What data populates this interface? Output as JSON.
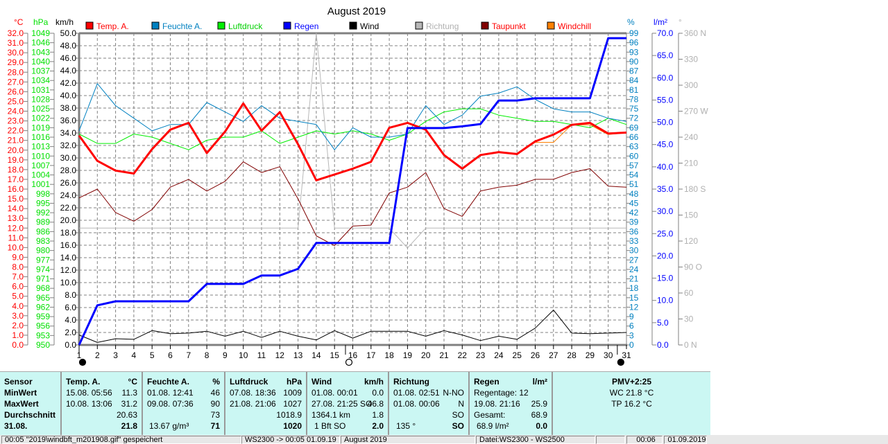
{
  "chart_data": {
    "type": "line",
    "title": "August 2019",
    "x": [
      1,
      2,
      3,
      4,
      5,
      6,
      7,
      8,
      9,
      10,
      11,
      12,
      13,
      14,
      15,
      16,
      17,
      18,
      19,
      20,
      21,
      22,
      23,
      24,
      25,
      26,
      27,
      28,
      29,
      30,
      31
    ],
    "x_tick_labels": [
      "1",
      "2",
      "3",
      "4",
      "5",
      "6",
      "7",
      "8",
      "9",
      "10",
      "11",
      "12",
      "13",
      "14",
      "15",
      "16",
      "17",
      "18",
      "19",
      "20",
      "21",
      "22",
      "23",
      "24",
      "25",
      "26",
      "27",
      "28",
      "29",
      "30",
      "31"
    ],
    "axes": {
      "temp": {
        "unit": "°C",
        "range": [
          0,
          32
        ],
        "step": 1,
        "color": "#ff0000"
      },
      "pressure": {
        "unit": "hPa",
        "range": [
          950,
          1049
        ],
        "step": 3,
        "color": "#00e000"
      },
      "wind": {
        "unit": "km/h",
        "range": [
          0,
          50
        ],
        "step": 2,
        "color": "#000000"
      },
      "humidity": {
        "unit": "%",
        "range": [
          0,
          99
        ],
        "step": 3,
        "color": "#0080c0"
      },
      "rain": {
        "unit": "l/m²",
        "range": [
          0,
          70
        ],
        "step": 5,
        "color": "#0000ff"
      },
      "direction": {
        "unit": "°",
        "range": [
          0,
          360
        ],
        "step": 30,
        "color": "#b0b0b0",
        "labels": [
          "0   N",
          "30",
          "60",
          "90   O",
          "120",
          "150",
          "180 S",
          "210",
          "240",
          "270 W",
          "300",
          "330",
          "360 N"
        ]
      }
    },
    "series": [
      {
        "name": "Temp. A.",
        "axis": "temp",
        "color": "#ff0000",
        "width": 3,
        "values": [
          21.5,
          18.9,
          17.9,
          17.6,
          20.1,
          22.1,
          22.8,
          19.7,
          21.9,
          24.8,
          22.0,
          23.9,
          20.6,
          16.9,
          17.5,
          18.1,
          18.8,
          22.3,
          22.8,
          22.1,
          19.5,
          18.1,
          19.5,
          19.8,
          19.6,
          20.9,
          21.6,
          22.6,
          22.8,
          21.7,
          21.8
        ]
      },
      {
        "name": "Feuchte A.",
        "axis": "humidity",
        "color": "#0080c0",
        "width": 1,
        "values": [
          68,
          83,
          76,
          72,
          68,
          70,
          70,
          77,
          74,
          71,
          76,
          72,
          71,
          70,
          62,
          69,
          66,
          66,
          67,
          76,
          70,
          73,
          79,
          80,
          82,
          78,
          75,
          74,
          74,
          72,
          71
        ]
      },
      {
        "name": "Luftdruck",
        "axis": "pressure",
        "color": "#00ee00",
        "width": 1,
        "values": [
          1017,
          1014,
          1014,
          1017,
          1016,
          1014,
          1012,
          1015,
          1016,
          1016,
          1018,
          1014,
          1016,
          1018,
          1017,
          1018,
          1017,
          1015,
          1017,
          1021,
          1024,
          1025,
          1025,
          1023,
          1022,
          1021,
          1021,
          1020,
          1019,
          1022,
          1020
        ]
      },
      {
        "name": "Regen",
        "axis": "rain",
        "color": "#0000ff",
        "width": 3,
        "values": [
          0,
          8.9,
          9.8,
          9.8,
          9.8,
          9.8,
          9.8,
          13.7,
          13.7,
          13.7,
          15.6,
          15.6,
          17.1,
          22.9,
          22.9,
          22.9,
          22.9,
          22.9,
          48.7,
          48.7,
          48.7,
          49.1,
          49.6,
          54.9,
          54.9,
          55.4,
          55.4,
          55.4,
          55.4,
          68.9,
          68.9
        ]
      },
      {
        "name": "Wind",
        "axis": "wind",
        "color": "#000000",
        "width": 1,
        "values": [
          1.6,
          0.4,
          1.0,
          0.9,
          2.3,
          1.8,
          1.9,
          2.2,
          1.4,
          2.2,
          1.2,
          2.2,
          1.4,
          0.8,
          2.3,
          1.1,
          2.2,
          2.2,
          2.2,
          1.4,
          2.3,
          1.6,
          0.7,
          1.4,
          0.9,
          2.7,
          5.6,
          1.9,
          1.8,
          1.9,
          2.0
        ]
      },
      {
        "name": "Richtung",
        "axis": "direction",
        "color": "#b8b8b8",
        "width": 1,
        "values": [
          135,
          135,
          135,
          135,
          135,
          135,
          135,
          135,
          135,
          135,
          135,
          135,
          135,
          360,
          135,
          135,
          135,
          135,
          112,
          135,
          135,
          135,
          135,
          135,
          135,
          135,
          135,
          135,
          135,
          135,
          135
        ]
      },
      {
        "name": "Taupunkt",
        "axis": "temp",
        "color": "#800000",
        "width": 1,
        "values": [
          15.1,
          16.0,
          13.6,
          12.7,
          13.9,
          16.2,
          17.0,
          15.8,
          16.8,
          18.8,
          17.7,
          18.3,
          15.0,
          11.2,
          10.2,
          12.2,
          12.3,
          15.6,
          16.2,
          17.7,
          14.0,
          13.2,
          15.8,
          16.2,
          16.4,
          17.0,
          17.0,
          17.7,
          18.1,
          16.3,
          16.2
        ]
      },
      {
        "name": "Windchill",
        "axis": "temp",
        "color": "#ff8000",
        "width": 1,
        "values": [
          21.5,
          18.9,
          17.9,
          17.6,
          20.1,
          22.1,
          22.8,
          19.7,
          21.9,
          24.8,
          22.0,
          23.9,
          20.6,
          16.9,
          17.5,
          18.1,
          18.8,
          22.3,
          22.8,
          22.1,
          19.5,
          18.1,
          19.5,
          19.8,
          19.6,
          20.8,
          20.8,
          22.6,
          22.6,
          21.6,
          21.8
        ]
      }
    ],
    "legend_label_colors": [
      "#ff0000",
      "#0080c0",
      "#00d000",
      "#0000ff",
      "#000000",
      "#b0b0b0",
      "#ff0000",
      "#ff0000"
    ],
    "moon_phases": [
      {
        "day": 1,
        "phase": "new"
      },
      {
        "day": 15.6,
        "phase": "full"
      },
      {
        "day": 30.5,
        "phase": "new"
      }
    ],
    "grid": true,
    "legend_placement": "top"
  },
  "stats": {
    "row_labels": [
      "Sensor",
      "MinWert",
      "MaxWert",
      "Durchschnitt",
      "31.08."
    ],
    "temp": {
      "title": "Temp. A.",
      "unit": "°C",
      "min_time": "15.08.  05:56",
      "min": "11.3",
      "max_time": "10.08.  13:06",
      "max": "31.2",
      "avg": "20.63",
      "current": "21.8"
    },
    "humidity": {
      "title": "Feuchte A.",
      "unit": "%",
      "min_time": "01.08.  12:41",
      "min": "46",
      "max_time": "09.08.  07:36",
      "max": "90",
      "avg": "73",
      "abs": "13.67 g/m³",
      "current": "71"
    },
    "pressure": {
      "title": "Luftdruck",
      "unit": "hPa",
      "min_time": "07.08.  18:36",
      "min": "1009",
      "max_time": "21.08.  21:06",
      "max": "1027",
      "avg": "1018.9",
      "current": "1020"
    },
    "wind": {
      "title": "Wind",
      "unit": "km/h",
      "min_time": "01.08.  00:01",
      "min": "0.0",
      "max_time": "27.08.  21:25 SO",
      "max": "46.8",
      "distance": "1364.1 km",
      "avg": "1.8",
      "bft": "1 Bft SO",
      "current": "2.0"
    },
    "direction": {
      "title": "Richtung",
      "min_time": "01.08.  02:51",
      "min": "N-NO",
      "max_time": "01.08.  00:06",
      "max": "N",
      "avg": "SO",
      "deg": "135 °",
      "current": "SO"
    },
    "rain": {
      "title": "Regen",
      "unit": "l/m²",
      "days": "Regentage: 12",
      "max_time": "19.08.  21:16",
      "max": "25.9",
      "total_label": "Gesamt:",
      "total": "68.9",
      "sum": "68.9 l/m²",
      "current": "0.0"
    },
    "extra": {
      "pmv": "PMV+2:25",
      "wc": "WC 21.8 °C",
      "tp": "TP 16.2 °C"
    }
  },
  "statusbar": {
    "msg": "00:05  \"2019\\windbft_m201908.gif\"  gespeichert",
    "sync": "WS2300 -> 00:05  01.09.19",
    "period": "August 2019",
    "file": "Datei:WS2300 - WS2500",
    "empty": "",
    "time": "00:06",
    "date": "01.09.2019"
  }
}
